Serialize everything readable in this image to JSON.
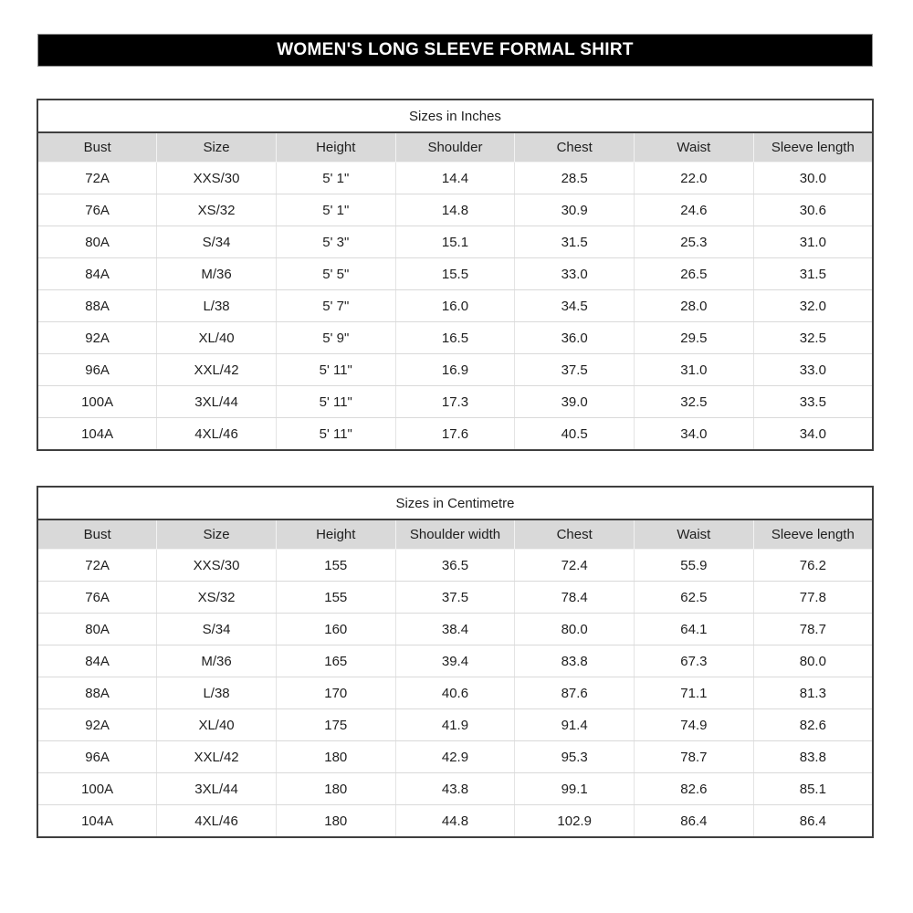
{
  "page_title": "WOMEN'S LONG SLEEVE FORMAL SHIRT",
  "colors": {
    "title_bar_bg": "#000000",
    "title_bar_text": "#ffffff",
    "header_row_bg": "#d9d9d9",
    "outer_border": "#3f3f3f",
    "row_separator": "#d9d9d9"
  },
  "tables": [
    {
      "title": "Sizes in Inches",
      "headers": [
        "Bust",
        "Size",
        "Height",
        "Shoulder",
        "Chest",
        "Waist",
        "Sleeve length"
      ],
      "rows": [
        [
          "72A",
          "XXS/30",
          "5' 1\"",
          "14.4",
          "28.5",
          "22.0",
          "30.0"
        ],
        [
          "76A",
          "XS/32",
          "5' 1\"",
          "14.8",
          "30.9",
          "24.6",
          "30.6"
        ],
        [
          "80A",
          "S/34",
          "5' 3\"",
          "15.1",
          "31.5",
          "25.3",
          "31.0"
        ],
        [
          "84A",
          "M/36",
          "5' 5\"",
          "15.5",
          "33.0",
          "26.5",
          "31.5"
        ],
        [
          "88A",
          "L/38",
          "5' 7\"",
          "16.0",
          "34.5",
          "28.0",
          "32.0"
        ],
        [
          "92A",
          "XL/40",
          "5' 9\"",
          "16.5",
          "36.0",
          "29.5",
          "32.5"
        ],
        [
          "96A",
          "XXL/42",
          "5' 11\"",
          "16.9",
          "37.5",
          "31.0",
          "33.0"
        ],
        [
          "100A",
          "3XL/44",
          "5' 11\"",
          "17.3",
          "39.0",
          "32.5",
          "33.5"
        ],
        [
          "104A",
          "4XL/46",
          "5' 11\"",
          "17.6",
          "40.5",
          "34.0",
          "34.0"
        ]
      ]
    },
    {
      "title": "Sizes in Centimetre",
      "headers": [
        "Bust",
        "Size",
        "Height",
        "Shoulder width",
        "Chest",
        "Waist",
        "Sleeve length"
      ],
      "rows": [
        [
          "72A",
          "XXS/30",
          "155",
          "36.5",
          "72.4",
          "55.9",
          "76.2"
        ],
        [
          "76A",
          "XS/32",
          "155",
          "37.5",
          "78.4",
          "62.5",
          "77.8"
        ],
        [
          "80A",
          "S/34",
          "160",
          "38.4",
          "80.0",
          "64.1",
          "78.7"
        ],
        [
          "84A",
          "M/36",
          "165",
          "39.4",
          "83.8",
          "67.3",
          "80.0"
        ],
        [
          "88A",
          "L/38",
          "170",
          "40.6",
          "87.6",
          "71.1",
          "81.3"
        ],
        [
          "92A",
          "XL/40",
          "175",
          "41.9",
          "91.4",
          "74.9",
          "82.6"
        ],
        [
          "96A",
          "XXL/42",
          "180",
          "42.9",
          "95.3",
          "78.7",
          "83.8"
        ],
        [
          "100A",
          "3XL/44",
          "180",
          "43.8",
          "99.1",
          "82.6",
          "85.1"
        ],
        [
          "104A",
          "4XL/46",
          "180",
          "44.8",
          "102.9",
          "86.4",
          "86.4"
        ]
      ]
    }
  ]
}
